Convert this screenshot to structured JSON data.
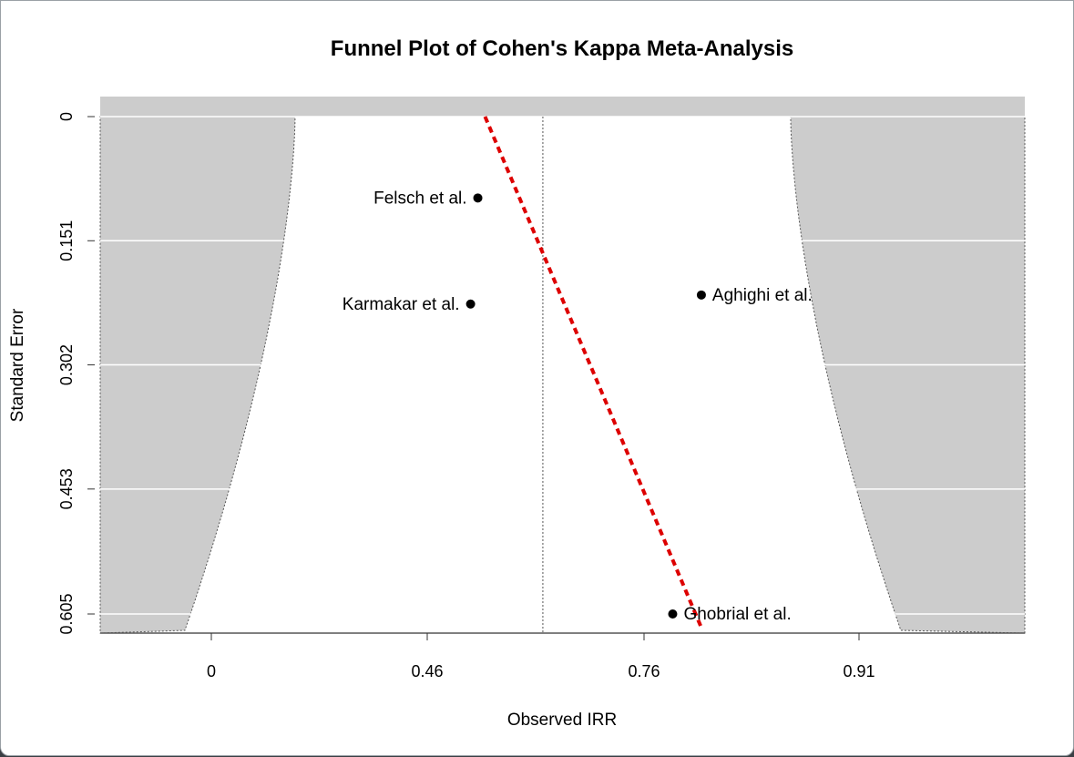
{
  "chart_data": {
    "type": "scatter",
    "title": "Funnel Plot of Cohen's Kappa Meta-Analysis",
    "xlabel": "Observed IRR",
    "ylabel": "Standard Error",
    "x_ticks": [
      "0",
      "0.46",
      "0.76",
      "0.91"
    ],
    "y_ticks": [
      "0",
      "0.151",
      "0.302",
      "0.453",
      "0.605"
    ],
    "ylim": [
      0,
      0.605
    ],
    "y_reversed": true,
    "grid": true,
    "pooled_estimate": 0.62,
    "points": [
      {
        "label": "Felsch et al.",
        "x": 0.53,
        "y": 0.099,
        "label_side": "left"
      },
      {
        "label": "Karmakar et al.",
        "x": 0.52,
        "y": 0.228,
        "label_side": "left"
      },
      {
        "label": "Aghighi et al.",
        "x": 0.8,
        "y": 0.217,
        "label_side": "right"
      },
      {
        "label": "Ghobrial et al.",
        "x": 0.78,
        "y": 0.605,
        "label_side": "right"
      }
    ],
    "regression_line": {
      "x_at_top": 0.54,
      "x_at_bottom": 0.8
    },
    "colors": {
      "funnel_region": "#cccccc",
      "regression": "#dd0000",
      "points": "#000000"
    }
  }
}
